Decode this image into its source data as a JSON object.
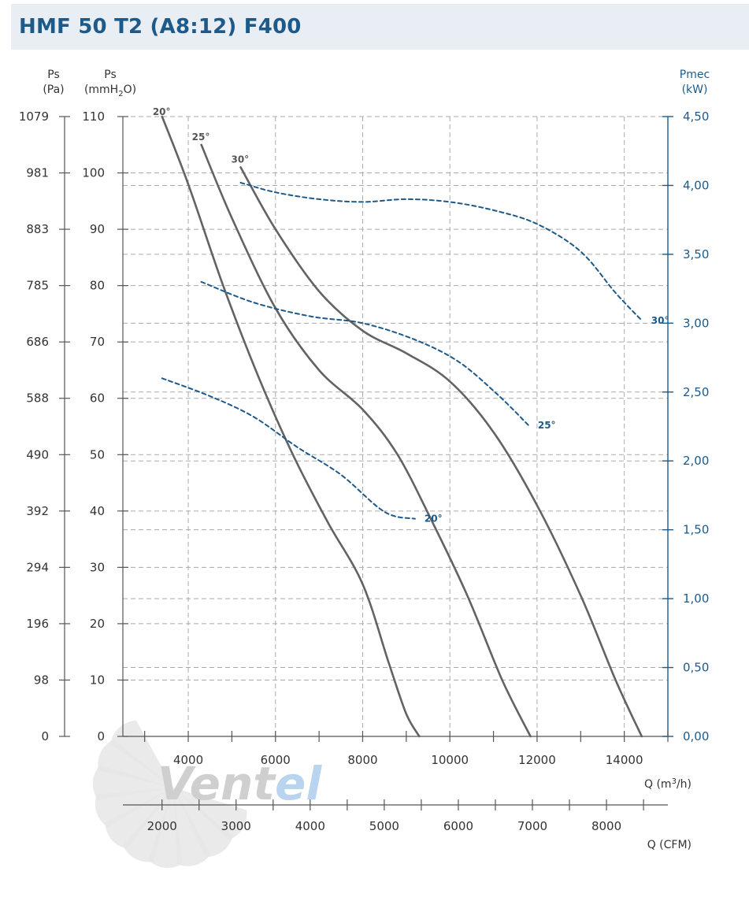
{
  "title": "HMF 50 T2 (A8:12) F400",
  "axes": {
    "left_outer": {
      "title": "Ps",
      "unit": "(Pa)",
      "ticks": [
        "0",
        "98",
        "196",
        "294",
        "392",
        "490",
        "588",
        "686",
        "785",
        "883",
        "981",
        "1079"
      ]
    },
    "left_inner": {
      "title": "Ps",
      "unit_prefix": "(mmH",
      "unit_sub": "2",
      "unit_suffix": "O)",
      "ticks": [
        "0",
        "10",
        "20",
        "30",
        "40",
        "50",
        "60",
        "70",
        "80",
        "90",
        "100",
        "110"
      ]
    },
    "right": {
      "title": "Pmec",
      "unit": "(kW)",
      "ticks": [
        "0,00",
        "0,50",
        "1,00",
        "1,50",
        "2,00",
        "2,50",
        "3,00",
        "3,50",
        "4,00",
        "4,50"
      ]
    },
    "x_top": {
      "label_prefix": "Q (m",
      "label_sup": "3",
      "label_suffix": "/h)",
      "ticks": [
        "4000",
        "6000",
        "8000",
        "10000",
        "12000",
        "14000"
      ]
    },
    "x_bottom": {
      "label": "Q (CFM)",
      "ticks": [
        "2000",
        "3000",
        "4000",
        "5000",
        "6000",
        "7000",
        "8000"
      ]
    }
  },
  "logo": {
    "text": "VENTEL",
    "part1": "Vent",
    "part2": "el",
    "color1": "#cfcfcf",
    "color2": "#b9d4ee"
  },
  "colors": {
    "pressure_curve": "#636363",
    "power_curve": "#1d5a8a",
    "grid": "#aaaaaa",
    "title": "#1d5a8a"
  },
  "chart_data": {
    "type": "line",
    "x_unit": "m3/h",
    "xlim": [
      2500,
      15000
    ],
    "ylim_left_mmH2O": [
      0,
      110
    ],
    "ylim_right_kW": [
      0,
      4.5
    ],
    "series": [
      {
        "name": "20°",
        "kind": "pressure",
        "axis": "left_mmH2O",
        "points": [
          [
            3400,
            110
          ],
          [
            4000,
            98
          ],
          [
            4800,
            80
          ],
          [
            5600,
            64
          ],
          [
            6400,
            50
          ],
          [
            7200,
            38
          ],
          [
            8000,
            27
          ],
          [
            8600,
            13
          ],
          [
            9000,
            4
          ],
          [
            9300,
            0
          ]
        ]
      },
      {
        "name": "25°",
        "kind": "pressure",
        "axis": "left_mmH2O",
        "points": [
          [
            4300,
            105
          ],
          [
            5000,
            92
          ],
          [
            6000,
            76
          ],
          [
            7000,
            65
          ],
          [
            8000,
            58
          ],
          [
            8800,
            50
          ],
          [
            9600,
            38
          ],
          [
            10400,
            25
          ],
          [
            11200,
            10
          ],
          [
            11850,
            0
          ]
        ]
      },
      {
        "name": "30°",
        "kind": "pressure",
        "axis": "left_mmH2O",
        "points": [
          [
            5200,
            101
          ],
          [
            6000,
            90
          ],
          [
            7000,
            79
          ],
          [
            8000,
            72
          ],
          [
            9000,
            68
          ],
          [
            10000,
            63
          ],
          [
            11000,
            54
          ],
          [
            12000,
            41
          ],
          [
            13000,
            25
          ],
          [
            13800,
            10
          ],
          [
            14400,
            0
          ]
        ]
      },
      {
        "name": "20°",
        "kind": "power",
        "axis": "right_kW",
        "points": [
          [
            3400,
            2.6
          ],
          [
            4500,
            2.47
          ],
          [
            5500,
            2.32
          ],
          [
            6500,
            2.1
          ],
          [
            7500,
            1.9
          ],
          [
            8500,
            1.63
          ],
          [
            9200,
            1.58
          ]
        ]
      },
      {
        "name": "25°",
        "kind": "power",
        "axis": "right_kW",
        "points": [
          [
            4300,
            3.3
          ],
          [
            5500,
            3.15
          ],
          [
            6800,
            3.05
          ],
          [
            8000,
            3.0
          ],
          [
            9200,
            2.88
          ],
          [
            10200,
            2.72
          ],
          [
            11100,
            2.48
          ],
          [
            11800,
            2.26
          ]
        ]
      },
      {
        "name": "30°",
        "kind": "power",
        "axis": "right_kW",
        "points": [
          [
            5200,
            4.02
          ],
          [
            6000,
            3.95
          ],
          [
            7000,
            3.9
          ],
          [
            8000,
            3.88
          ],
          [
            9000,
            3.9
          ],
          [
            10000,
            3.88
          ],
          [
            11000,
            3.82
          ],
          [
            12000,
            3.72
          ],
          [
            13000,
            3.52
          ],
          [
            13800,
            3.22
          ],
          [
            14400,
            3.02
          ]
        ]
      }
    ]
  }
}
